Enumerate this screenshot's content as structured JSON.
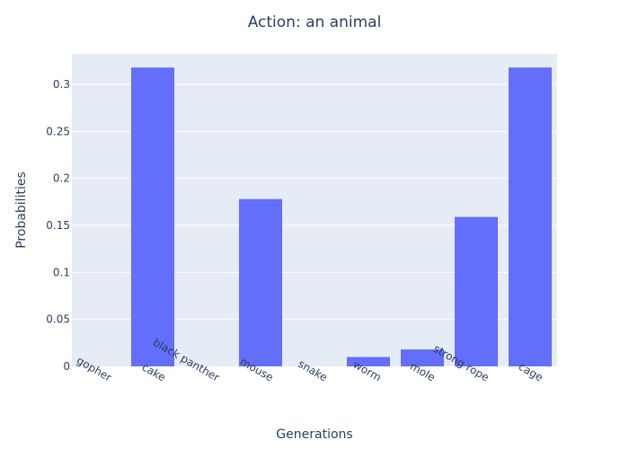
{
  "chart_data": {
    "type": "bar",
    "title": "Action: an animal",
    "xlabel": "Generations",
    "ylabel": "Probabilities",
    "categories": [
      "gopher",
      "cake",
      "black panther",
      "mouse",
      "snake",
      "worm",
      "mole",
      "strong rope",
      "cage"
    ],
    "values": [
      0,
      0.318,
      0,
      0.178,
      0,
      0.01,
      0.018,
      0.159,
      0.318
    ],
    "ylim": [
      0,
      0.3325
    ],
    "yticks": [
      0,
      0.05,
      0.1,
      0.15,
      0.2,
      0.25,
      0.3
    ],
    "ytick_labels": [
      "0",
      "0.05",
      "0.1",
      "0.15",
      "0.2",
      "0.25",
      "0.3"
    ],
    "grid": true,
    "legend": "none",
    "colors": {
      "bar": "#636efa",
      "plot_bg": "#e5ecf6",
      "grid": "#ffffff",
      "text": "#2a3f5f"
    }
  }
}
